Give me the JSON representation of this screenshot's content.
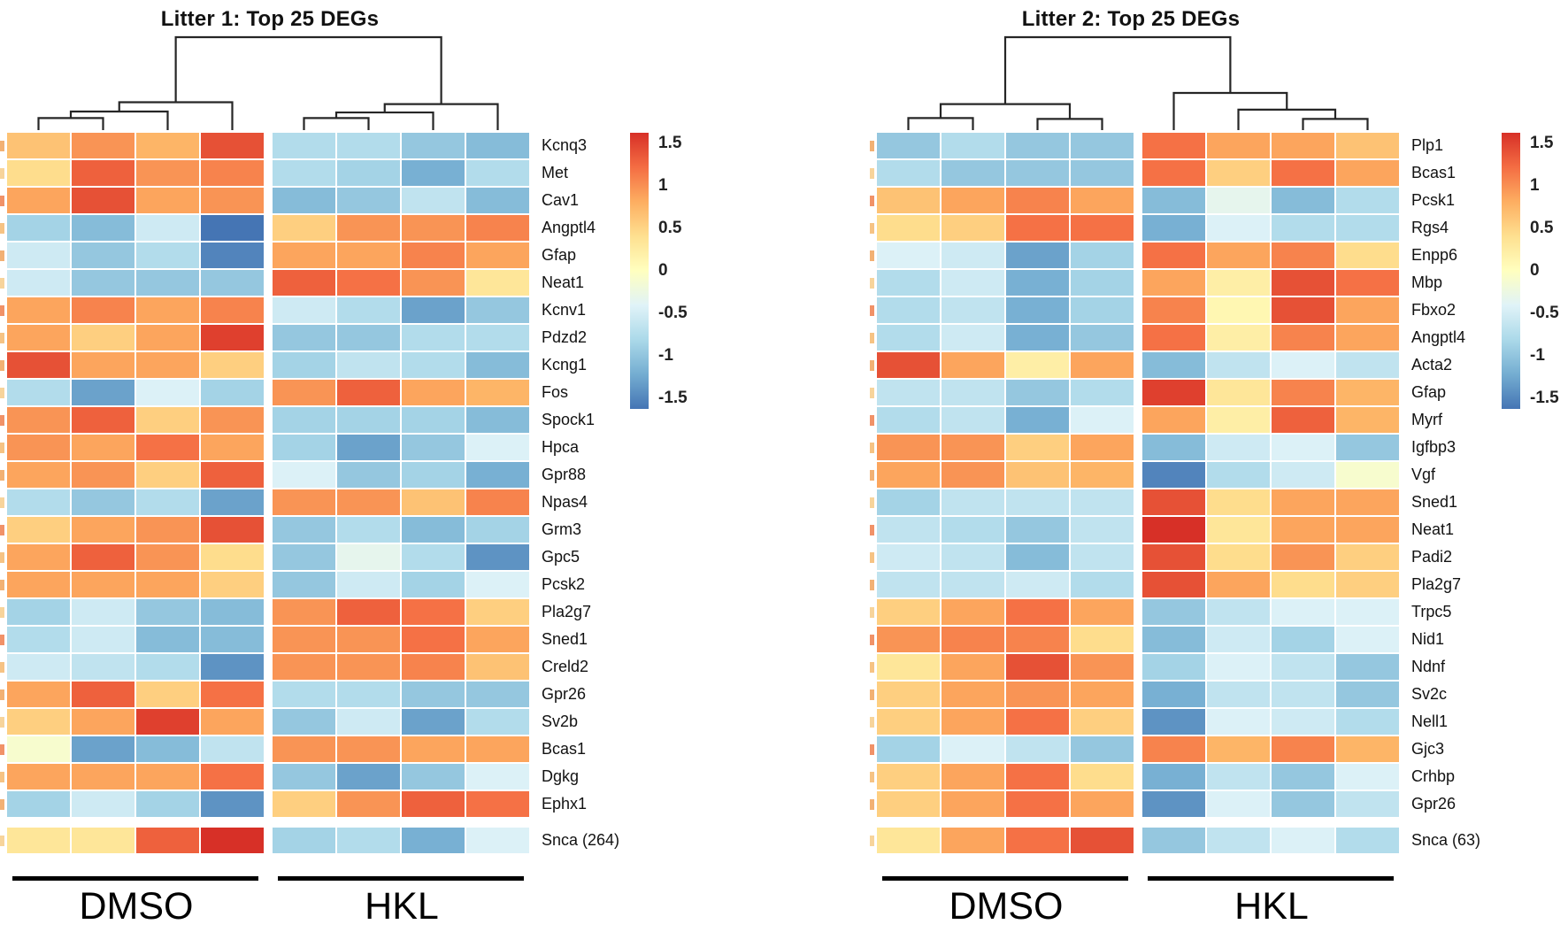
{
  "figure": {
    "colorscale": {
      "domain": [
        1.5,
        1.125,
        0.75,
        0.375,
        0,
        -0.375,
        -0.75,
        -1.125,
        -1.5
      ],
      "colors": [
        "#d73027",
        "#f46d43",
        "#fdae61",
        "#fee090",
        "#ffffbf",
        "#e0f3f8",
        "#abd9e9",
        "#74add1",
        "#4575b4"
      ]
    }
  },
  "chart_data": [
    {
      "type": "heatmap",
      "title": "Litter 1: Top 25 DEGs",
      "groups": [
        {
          "label": "DMSO",
          "n": 4
        },
        {
          "label": "HKL",
          "n": 4
        }
      ],
      "colorbar": {
        "ticks": [
          "1.5",
          "1",
          "0.5",
          "0",
          "-0.5",
          "-1",
          "-1.5"
        ],
        "min": -1.5,
        "max": 1.5
      },
      "separated_last_row": true,
      "rows": [
        {
          "gene": "Kcnq3",
          "values": [
            0.6,
            0.9,
            0.7,
            1.3,
            -0.7,
            -0.7,
            -0.9,
            -1.0
          ]
        },
        {
          "gene": "Met",
          "values": [
            0.4,
            1.2,
            0.9,
            1.0,
            -0.7,
            -0.8,
            -1.1,
            -0.7
          ]
        },
        {
          "gene": "Cav1",
          "values": [
            0.8,
            1.3,
            0.8,
            0.9,
            -1.0,
            -0.9,
            -0.6,
            -1.0
          ]
        },
        {
          "gene": "Angptl4",
          "values": [
            -0.8,
            -1.0,
            -0.5,
            -1.5,
            0.5,
            0.9,
            0.9,
            1.0
          ]
        },
        {
          "gene": "Gfap",
          "values": [
            -0.5,
            -0.9,
            -0.7,
            -1.4,
            0.8,
            0.8,
            1.0,
            0.8
          ]
        },
        {
          "gene": "Neat1",
          "values": [
            -0.5,
            -0.9,
            -0.9,
            -0.9,
            1.2,
            1.1,
            0.9,
            0.3
          ]
        },
        {
          "gene": "Kcnv1",
          "values": [
            0.8,
            1.0,
            0.8,
            1.0,
            -0.5,
            -0.7,
            -1.2,
            -0.9
          ]
        },
        {
          "gene": "Pdzd2",
          "values": [
            0.8,
            0.5,
            0.8,
            1.4,
            -0.9,
            -0.9,
            -0.7,
            -0.7
          ]
        },
        {
          "gene": "Kcng1",
          "values": [
            1.3,
            0.8,
            0.8,
            0.5,
            -0.8,
            -0.6,
            -0.7,
            -1.0
          ]
        },
        {
          "gene": "Fos",
          "values": [
            -0.7,
            -1.2,
            -0.4,
            -0.8,
            0.9,
            1.2,
            0.8,
            0.7
          ]
        },
        {
          "gene": "Spock1",
          "values": [
            0.9,
            1.2,
            0.5,
            0.9,
            -0.8,
            -0.8,
            -0.8,
            -1.0
          ]
        },
        {
          "gene": "Hpca",
          "values": [
            0.9,
            0.8,
            1.1,
            0.8,
            -0.8,
            -1.2,
            -0.9,
            -0.4
          ]
        },
        {
          "gene": "Gpr88",
          "values": [
            0.8,
            0.9,
            0.5,
            1.2,
            -0.4,
            -0.9,
            -0.8,
            -1.1
          ]
        },
        {
          "gene": "Npas4",
          "values": [
            -0.7,
            -0.9,
            -0.7,
            -1.2,
            0.9,
            0.9,
            0.6,
            1.0
          ]
        },
        {
          "gene": "Grm3",
          "values": [
            0.5,
            0.8,
            0.9,
            1.3,
            -0.9,
            -0.7,
            -1.0,
            -0.8
          ]
        },
        {
          "gene": "Gpc5",
          "values": [
            0.8,
            1.2,
            0.9,
            0.4,
            -0.9,
            -0.3,
            -0.7,
            -1.3
          ]
        },
        {
          "gene": "Pcsk2",
          "values": [
            0.8,
            0.8,
            0.8,
            0.5,
            -0.9,
            -0.5,
            -0.8,
            -0.4
          ]
        },
        {
          "gene": "Pla2g7",
          "values": [
            -0.8,
            -0.5,
            -0.9,
            -1.0,
            0.9,
            1.2,
            1.1,
            0.5
          ]
        },
        {
          "gene": "Sned1",
          "values": [
            -0.7,
            -0.5,
            -1.0,
            -1.0,
            0.9,
            0.9,
            1.1,
            0.8
          ]
        },
        {
          "gene": "Creld2",
          "values": [
            -0.5,
            -0.6,
            -0.7,
            -1.3,
            0.9,
            0.9,
            1.0,
            0.6
          ]
        },
        {
          "gene": "Gpr26",
          "values": [
            0.8,
            1.2,
            0.5,
            1.1,
            -0.7,
            -0.7,
            -0.9,
            -0.9
          ]
        },
        {
          "gene": "Sv2b",
          "values": [
            0.5,
            0.8,
            1.4,
            0.8,
            -0.9,
            -0.5,
            -1.2,
            -0.7
          ]
        },
        {
          "gene": "Bcas1",
          "values": [
            -0.1,
            -1.2,
            -1.0,
            -0.6,
            0.9,
            0.9,
            0.8,
            0.8
          ]
        },
        {
          "gene": "Dgkg",
          "values": [
            0.8,
            0.8,
            0.8,
            1.1,
            -0.9,
            -1.2,
            -0.9,
            -0.4
          ]
        },
        {
          "gene": "Ephx1",
          "values": [
            -0.8,
            -0.5,
            -0.8,
            -1.3,
            0.5,
            0.9,
            1.2,
            1.1
          ]
        },
        {
          "gene": "Snca (264)",
          "values": [
            0.3,
            0.3,
            1.2,
            1.5,
            -0.8,
            -0.7,
            -1.1,
            -0.4
          ]
        }
      ],
      "dendrogram": [
        [
          "c0",
          "c1",
          0.13
        ],
        [
          "m0",
          "c2",
          0.2
        ],
        [
          "m1",
          "c3",
          0.3
        ],
        [
          "c4",
          "c5",
          0.13
        ],
        [
          "m3",
          "c6",
          0.19
        ],
        [
          "m4",
          "c7",
          0.28
        ],
        [
          "m2",
          "m5",
          1.0
        ]
      ]
    },
    {
      "type": "heatmap",
      "title": "Litter 2: Top 25 DEGs",
      "groups": [
        {
          "label": "DMSO",
          "n": 4
        },
        {
          "label": "HKL",
          "n": 4
        }
      ],
      "colorbar": {
        "ticks": [
          "1.5",
          "1",
          "0.5",
          "0",
          "-0.5",
          "-1",
          "-1.5"
        ],
        "min": -1.5,
        "max": 1.5
      },
      "separated_last_row": true,
      "rows": [
        {
          "gene": "Plp1",
          "values": [
            -0.9,
            -0.7,
            -0.9,
            -0.9,
            1.1,
            0.8,
            0.8,
            0.6
          ]
        },
        {
          "gene": "Bcas1",
          "values": [
            -0.7,
            -0.9,
            -0.9,
            -0.9,
            1.1,
            0.5,
            1.1,
            0.8
          ]
        },
        {
          "gene": "Pcsk1",
          "values": [
            0.6,
            0.8,
            1.0,
            0.8,
            -1.0,
            -0.3,
            -1.0,
            -0.7
          ]
        },
        {
          "gene": "Rgs4",
          "values": [
            0.4,
            0.5,
            1.1,
            1.1,
            -1.1,
            -0.4,
            -0.7,
            -0.7
          ]
        },
        {
          "gene": "Enpp6",
          "values": [
            -0.4,
            -0.5,
            -1.2,
            -0.8,
            1.1,
            0.8,
            1.0,
            0.4
          ]
        },
        {
          "gene": "Mbp",
          "values": [
            -0.7,
            -0.5,
            -1.1,
            -0.8,
            0.8,
            0.2,
            1.3,
            1.1
          ]
        },
        {
          "gene": "Fbxo2",
          "values": [
            -0.7,
            -0.6,
            -1.1,
            -0.8,
            1.0,
            0.1,
            1.3,
            0.8
          ]
        },
        {
          "gene": "Angptl4",
          "values": [
            -0.7,
            -0.5,
            -1.1,
            -0.9,
            1.1,
            0.2,
            1.0,
            0.8
          ]
        },
        {
          "gene": "Acta2",
          "values": [
            1.3,
            0.8,
            0.2,
            0.8,
            -1.0,
            -0.6,
            -0.4,
            -0.6
          ]
        },
        {
          "gene": "Gfap",
          "values": [
            -0.6,
            -0.6,
            -0.9,
            -0.7,
            1.4,
            0.3,
            1.0,
            0.7
          ]
        },
        {
          "gene": "Myrf",
          "values": [
            -0.7,
            -0.6,
            -1.1,
            -0.4,
            0.8,
            0.2,
            1.2,
            0.7
          ]
        },
        {
          "gene": "Igfbp3",
          "values": [
            0.9,
            0.9,
            0.5,
            0.8,
            -1.0,
            -0.5,
            -0.4,
            -0.9
          ]
        },
        {
          "gene": "Vgf",
          "values": [
            0.8,
            0.9,
            0.6,
            0.7,
            -1.4,
            -0.7,
            -0.5,
            -0.1
          ]
        },
        {
          "gene": "Sned1",
          "values": [
            -0.8,
            -0.6,
            -0.6,
            -0.6,
            1.3,
            0.4,
            0.8,
            0.8
          ]
        },
        {
          "gene": "Neat1",
          "values": [
            -0.6,
            -0.7,
            -0.9,
            -0.6,
            1.5,
            0.3,
            0.8,
            0.8
          ]
        },
        {
          "gene": "Padi2",
          "values": [
            -0.5,
            -0.6,
            -1.0,
            -0.6,
            1.3,
            0.4,
            0.9,
            0.5
          ]
        },
        {
          "gene": "Pla2g7",
          "values": [
            -0.6,
            -0.6,
            -0.5,
            -0.7,
            1.3,
            0.8,
            0.4,
            0.5
          ]
        },
        {
          "gene": "Trpc5",
          "values": [
            0.5,
            0.8,
            1.1,
            0.8,
            -0.9,
            -0.6,
            -0.4,
            -0.4
          ]
        },
        {
          "gene": "Nid1",
          "values": [
            0.9,
            1.0,
            1.0,
            0.4,
            -1.0,
            -0.5,
            -0.8,
            -0.4
          ]
        },
        {
          "gene": "Ndnf",
          "values": [
            0.3,
            0.8,
            1.3,
            0.9,
            -0.8,
            -0.4,
            -0.6,
            -0.9
          ]
        },
        {
          "gene": "Sv2c",
          "values": [
            0.5,
            0.8,
            0.9,
            0.8,
            -1.1,
            -0.6,
            -0.6,
            -0.9
          ]
        },
        {
          "gene": "Nell1",
          "values": [
            0.5,
            0.8,
            1.1,
            0.5,
            -1.3,
            -0.4,
            -0.5,
            -0.7
          ]
        },
        {
          "gene": "Gjc3",
          "values": [
            -0.8,
            -0.4,
            -0.6,
            -0.9,
            1.0,
            0.7,
            1.0,
            0.7
          ]
        },
        {
          "gene": "Crhbp",
          "values": [
            0.5,
            0.8,
            1.1,
            0.4,
            -1.1,
            -0.6,
            -0.9,
            -0.4
          ]
        },
        {
          "gene": "Gpr26",
          "values": [
            0.5,
            0.8,
            1.1,
            0.8,
            -1.3,
            -0.4,
            -0.9,
            -0.6
          ]
        },
        {
          "gene": "Snca (63)",
          "values": [
            0.3,
            0.8,
            1.1,
            1.3,
            -0.9,
            -0.6,
            -0.4,
            -0.7
          ]
        }
      ],
      "dendrogram": [
        [
          "c0",
          "c1",
          0.13
        ],
        [
          "c2",
          "c3",
          0.12
        ],
        [
          "m0",
          "m1",
          0.28
        ],
        [
          "c6",
          "c7",
          0.12
        ],
        [
          "c5",
          "m3",
          0.22
        ],
        [
          "c4",
          "m4",
          0.4
        ],
        [
          "m2",
          "m5",
          1.0
        ]
      ]
    }
  ]
}
